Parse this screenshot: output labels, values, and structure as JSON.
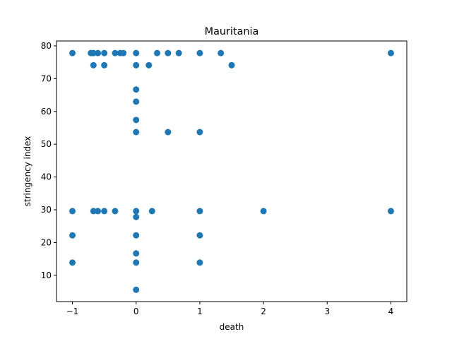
{
  "chart_data": {
    "type": "scatter",
    "title": "Mauritania",
    "xlabel": "death",
    "ylabel": "stringency index",
    "xlim": [
      -1.25,
      4.25
    ],
    "ylim": [
      2.0,
      81.5
    ],
    "xticks": [
      -1,
      0,
      1,
      2,
      3,
      4
    ],
    "xtick_labels": [
      "−1",
      "0",
      "1",
      "2",
      "3",
      "4"
    ],
    "yticks": [
      10,
      20,
      30,
      40,
      50,
      60,
      70,
      80
    ],
    "ytick_labels": [
      "10",
      "20",
      "30",
      "40",
      "50",
      "60",
      "70",
      "80"
    ],
    "grid": false,
    "legend": null,
    "color": "#1f77b4",
    "points": [
      [
        -1,
        77.8
      ],
      [
        -0.71,
        77.8
      ],
      [
        -0.67,
        77.8
      ],
      [
        -0.6,
        77.8
      ],
      [
        -0.5,
        77.8
      ],
      [
        -0.33,
        77.8
      ],
      [
        -0.25,
        77.8
      ],
      [
        -0.2,
        77.8
      ],
      [
        0,
        77.8
      ],
      [
        0.33,
        77.8
      ],
      [
        0.5,
        77.8
      ],
      [
        0.67,
        77.8
      ],
      [
        1,
        77.8
      ],
      [
        1.33,
        77.8
      ],
      [
        4,
        77.8
      ],
      [
        -0.67,
        74.1
      ],
      [
        -0.5,
        74.1
      ],
      [
        0,
        74.1
      ],
      [
        0.2,
        74.1
      ],
      [
        1.5,
        74.1
      ],
      [
        0,
        66.7
      ],
      [
        0,
        63.0
      ],
      [
        0,
        57.4
      ],
      [
        0,
        53.7
      ],
      [
        0.5,
        53.7
      ],
      [
        1,
        53.7
      ],
      [
        -1,
        29.6
      ],
      [
        -0.67,
        29.6
      ],
      [
        -0.6,
        29.6
      ],
      [
        -0.5,
        29.6
      ],
      [
        -0.33,
        29.6
      ],
      [
        0,
        29.6
      ],
      [
        0.25,
        29.6
      ],
      [
        1,
        29.6
      ],
      [
        2,
        29.6
      ],
      [
        4,
        29.6
      ],
      [
        0,
        27.8
      ],
      [
        -1,
        22.2
      ],
      [
        0,
        22.2
      ],
      [
        1,
        22.2
      ],
      [
        0,
        16.7
      ],
      [
        -1,
        13.9
      ],
      [
        0,
        13.9
      ],
      [
        1,
        13.9
      ],
      [
        0,
        5.6
      ]
    ]
  }
}
